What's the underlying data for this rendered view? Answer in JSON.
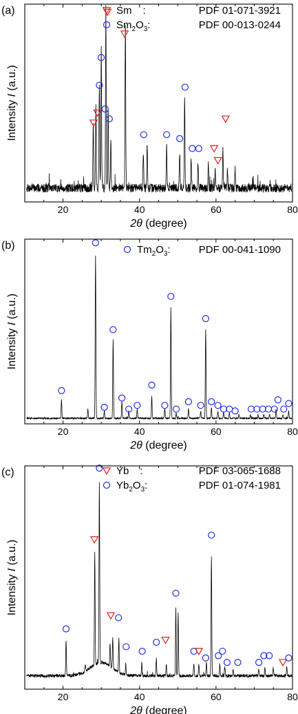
{
  "colors": {
    "triangle": "#e0201b",
    "circle": "#1f2de6",
    "line": "#000000"
  },
  "chart_data": [
    {
      "type": "line",
      "panel_label": "(a)",
      "ylabel_prefix": "Intensity ",
      "ylabel_var": "I",
      "ylabel_suffix": " (a.u.)",
      "xlabel_var": "2θ",
      "xlabel_suffix": " (degree)",
      "xlim": [
        10,
        80
      ],
      "xticks": [
        20,
        40,
        60,
        80
      ],
      "ylim": [
        0,
        100
      ],
      "baseline": 7,
      "noise": 2.2,
      "peaks": [
        {
          "x": 27.9,
          "h": 34
        },
        {
          "x": 28.6,
          "h": 42
        },
        {
          "x": 29.5,
          "h": 52
        },
        {
          "x": 30.0,
          "h": 70
        },
        {
          "x": 31.2,
          "h": 90
        },
        {
          "x": 31.8,
          "h": 40
        },
        {
          "x": 32.5,
          "h": 25
        },
        {
          "x": 36.3,
          "h": 84
        },
        {
          "x": 41.0,
          "h": 19
        },
        {
          "x": 42.0,
          "h": 23
        },
        {
          "x": 47.1,
          "h": 22
        },
        {
          "x": 50.5,
          "h": 18
        },
        {
          "x": 51.8,
          "h": 45
        },
        {
          "x": 53.5,
          "h": 14
        },
        {
          "x": 55.3,
          "h": 13
        },
        {
          "x": 58.0,
          "h": 13
        },
        {
          "x": 59.8,
          "h": 9
        },
        {
          "x": 61.8,
          "h": 19
        },
        {
          "x": 63.0,
          "h": 8
        },
        {
          "x": 65.0,
          "h": 10
        }
      ],
      "markers": [
        {
          "shape": "triangle",
          "x": 28.0,
          "y": 40
        },
        {
          "shape": "triangle",
          "x": 29.0,
          "y": 45
        },
        {
          "shape": "circle",
          "x": 29.5,
          "y": 59
        },
        {
          "shape": "circle",
          "x": 30.0,
          "y": 73
        },
        {
          "shape": "circle",
          "x": 31.0,
          "y": 47
        },
        {
          "shape": "circle",
          "x": 32.1,
          "y": 42
        },
        {
          "shape": "triangle",
          "x": 31.6,
          "y": 96
        },
        {
          "shape": "triangle",
          "x": 36.1,
          "y": 85
        },
        {
          "shape": "circle",
          "x": 41.1,
          "y": 34
        },
        {
          "shape": "circle",
          "x": 47.1,
          "y": 34
        },
        {
          "shape": "circle",
          "x": 50.5,
          "y": 32
        },
        {
          "shape": "circle",
          "x": 51.9,
          "y": 58
        },
        {
          "shape": "circle",
          "x": 53.8,
          "y": 27
        },
        {
          "shape": "circle",
          "x": 55.5,
          "y": 27
        },
        {
          "shape": "triangle",
          "x": 59.5,
          "y": 27
        },
        {
          "shape": "triangle",
          "x": 60.5,
          "y": 21
        },
        {
          "shape": "triangle",
          "x": 62.5,
          "y": 42
        }
      ],
      "legend": [
        {
          "shape": "triangle",
          "name": "Sm",
          "sub": "",
          "rest": "",
          "sep": ":",
          "pdf": "PDF 01-071-3921"
        },
        {
          "shape": "circle",
          "name": "Sm",
          "sub": "2",
          "rest": "O3",
          "sep": ":",
          "pdf": "PDF 00-013-0244"
        }
      ]
    },
    {
      "type": "line",
      "panel_label": "(b)",
      "ylabel_prefix": "Intensity ",
      "ylabel_var": "I",
      "ylabel_suffix": " (a.u.)",
      "xlabel_var": "2θ",
      "xlabel_suffix": " (degree)",
      "xlim": [
        10,
        80
      ],
      "xticks": [
        20,
        40,
        60,
        80
      ],
      "ylim": [
        0,
        100
      ],
      "baseline": 3,
      "noise": 0.4,
      "peaks": [
        {
          "x": 19.6,
          "h": 10
        },
        {
          "x": 26.5,
          "h": 5
        },
        {
          "x": 28.5,
          "h": 88
        },
        {
          "x": 30.8,
          "h": 4
        },
        {
          "x": 33.1,
          "h": 42
        },
        {
          "x": 35.4,
          "h": 9
        },
        {
          "x": 37.2,
          "h": 4
        },
        {
          "x": 39.4,
          "h": 5
        },
        {
          "x": 43.2,
          "h": 12
        },
        {
          "x": 46.6,
          "h": 5
        },
        {
          "x": 48.2,
          "h": 60
        },
        {
          "x": 49.6,
          "h": 3
        },
        {
          "x": 52.8,
          "h": 5
        },
        {
          "x": 56.0,
          "h": 4
        },
        {
          "x": 57.3,
          "h": 48
        },
        {
          "x": 58.8,
          "h": 6
        },
        {
          "x": 60.5,
          "h": 4
        },
        {
          "x": 62.0,
          "h": 3
        },
        {
          "x": 63.5,
          "h": 3
        },
        {
          "x": 66.0,
          "h": 2
        },
        {
          "x": 69.0,
          "h": 2
        },
        {
          "x": 71.0,
          "h": 2
        },
        {
          "x": 72.5,
          "h": 2
        },
        {
          "x": 74.0,
          "h": 2
        },
        {
          "x": 75.7,
          "h": 5
        },
        {
          "x": 77.5,
          "h": 2
        },
        {
          "x": 79.0,
          "h": 4
        }
      ],
      "markers": [
        {
          "shape": "circle",
          "x": 19.6,
          "y": 18
        },
        {
          "shape": "circle",
          "x": 28.5,
          "y": 98
        },
        {
          "shape": "circle",
          "x": 30.8,
          "y": 9
        },
        {
          "shape": "circle",
          "x": 33.1,
          "y": 51
        },
        {
          "shape": "circle",
          "x": 35.4,
          "y": 14
        },
        {
          "shape": "circle",
          "x": 37.2,
          "y": 8
        },
        {
          "shape": "circle",
          "x": 39.4,
          "y": 10
        },
        {
          "shape": "circle",
          "x": 43.2,
          "y": 21
        },
        {
          "shape": "circle",
          "x": 46.6,
          "y": 10
        },
        {
          "shape": "circle",
          "x": 48.2,
          "y": 69
        },
        {
          "shape": "circle",
          "x": 49.6,
          "y": 8
        },
        {
          "shape": "circle",
          "x": 52.8,
          "y": 12
        },
        {
          "shape": "circle",
          "x": 56.0,
          "y": 10
        },
        {
          "shape": "circle",
          "x": 57.3,
          "y": 57
        },
        {
          "shape": "circle",
          "x": 58.8,
          "y": 12
        },
        {
          "shape": "circle",
          "x": 60.5,
          "y": 10
        },
        {
          "shape": "circle",
          "x": 62.0,
          "y": 8
        },
        {
          "shape": "circle",
          "x": 63.5,
          "y": 8
        },
        {
          "shape": "circle",
          "x": 65.0,
          "y": 7
        },
        {
          "shape": "circle",
          "x": 69.2,
          "y": 8
        },
        {
          "shape": "circle",
          "x": 70.7,
          "y": 8
        },
        {
          "shape": "circle",
          "x": 72.2,
          "y": 8
        },
        {
          "shape": "circle",
          "x": 73.7,
          "y": 8
        },
        {
          "shape": "circle",
          "x": 75.3,
          "y": 8
        },
        {
          "shape": "circle",
          "x": 76.2,
          "y": 13
        },
        {
          "shape": "circle",
          "x": 77.7,
          "y": 8
        },
        {
          "shape": "circle",
          "x": 79.0,
          "y": 11
        }
      ],
      "legend": [
        {
          "shape": "circle",
          "name": "Tm",
          "sub": "2",
          "rest": "O3",
          "sep": ":",
          "pdf": "PDF 00-041-1090"
        }
      ]
    },
    {
      "type": "line",
      "panel_label": "(c)",
      "ylabel_prefix": "Intensity ",
      "ylabel_var": "I",
      "ylabel_suffix": " (a.u.)",
      "xlabel_var": "2θ",
      "xlabel_suffix": " (degree)",
      "xlim": [
        10,
        80
      ],
      "xticks": [
        20,
        40,
        60,
        80
      ],
      "ylim": [
        0,
        100
      ],
      "baseline": 6,
      "noise": 0.7,
      "peaks": [
        {
          "x": 20.8,
          "h": 16
        },
        {
          "x": 25.8,
          "h": 3
        },
        {
          "x": 28.3,
          "h": 50
        },
        {
          "x": 29.5,
          "h": 80
        },
        {
          "x": 32.3,
          "h": 10
        },
        {
          "x": 33.0,
          "h": 14
        },
        {
          "x": 34.6,
          "h": 15
        },
        {
          "x": 36.4,
          "h": 5
        },
        {
          "x": 40.6,
          "h": 6
        },
        {
          "x": 44.4,
          "h": 8
        },
        {
          "x": 47.0,
          "h": 5
        },
        {
          "x": 49.5,
          "h": 30
        },
        {
          "x": 50.1,
          "h": 28
        },
        {
          "x": 54.2,
          "h": 6
        },
        {
          "x": 55.5,
          "h": 5
        },
        {
          "x": 57.5,
          "h": 6
        },
        {
          "x": 58.8,
          "h": 54
        },
        {
          "x": 61.0,
          "h": 5
        },
        {
          "x": 62.3,
          "h": 4
        },
        {
          "x": 64.5,
          "h": 3
        },
        {
          "x": 71.2,
          "h": 3
        },
        {
          "x": 72.8,
          "h": 4
        },
        {
          "x": 75.0,
          "h": 3
        },
        {
          "x": 78.5,
          "h": 4
        }
      ],
      "markers": [
        {
          "shape": "circle",
          "x": 20.8,
          "y": 27
        },
        {
          "shape": "triangle",
          "x": 28.2,
          "y": 67
        },
        {
          "shape": "circle",
          "x": 29.5,
          "y": 99
        },
        {
          "shape": "triangle",
          "x": 32.5,
          "y": 33
        },
        {
          "shape": "circle",
          "x": 34.5,
          "y": 32
        },
        {
          "shape": "circle",
          "x": 36.5,
          "y": 19
        },
        {
          "shape": "circle",
          "x": 40.7,
          "y": 17
        },
        {
          "shape": "circle",
          "x": 44.4,
          "y": 21
        },
        {
          "shape": "triangle",
          "x": 46.8,
          "y": 22
        },
        {
          "shape": "circle",
          "x": 49.5,
          "y": 43
        },
        {
          "shape": "circle",
          "x": 54.2,
          "y": 17
        },
        {
          "shape": "triangle",
          "x": 55.5,
          "y": 17
        },
        {
          "shape": "circle",
          "x": 57.3,
          "y": 14
        },
        {
          "shape": "circle",
          "x": 58.8,
          "y": 69
        },
        {
          "shape": "circle",
          "x": 60.6,
          "y": 15
        },
        {
          "shape": "circle",
          "x": 61.7,
          "y": 17
        },
        {
          "shape": "circle",
          "x": 62.9,
          "y": 12
        },
        {
          "shape": "circle",
          "x": 65.7,
          "y": 12
        },
        {
          "shape": "circle",
          "x": 71.2,
          "y": 12
        },
        {
          "shape": "circle",
          "x": 72.5,
          "y": 15
        },
        {
          "shape": "circle",
          "x": 73.9,
          "y": 15
        },
        {
          "shape": "triangle",
          "x": 77.5,
          "y": 12
        },
        {
          "shape": "circle",
          "x": 79.0,
          "y": 14
        }
      ],
      "legend": [
        {
          "shape": "triangle",
          "name": "Yb",
          "sub": "",
          "rest": "",
          "sep": ":",
          "pdf": "PDF 03-065-1688"
        },
        {
          "shape": "circle",
          "name": "Yb",
          "sub": "2",
          "rest": "O3",
          "sep": ":",
          "pdf": "PDF 01-074-1981"
        }
      ]
    }
  ]
}
